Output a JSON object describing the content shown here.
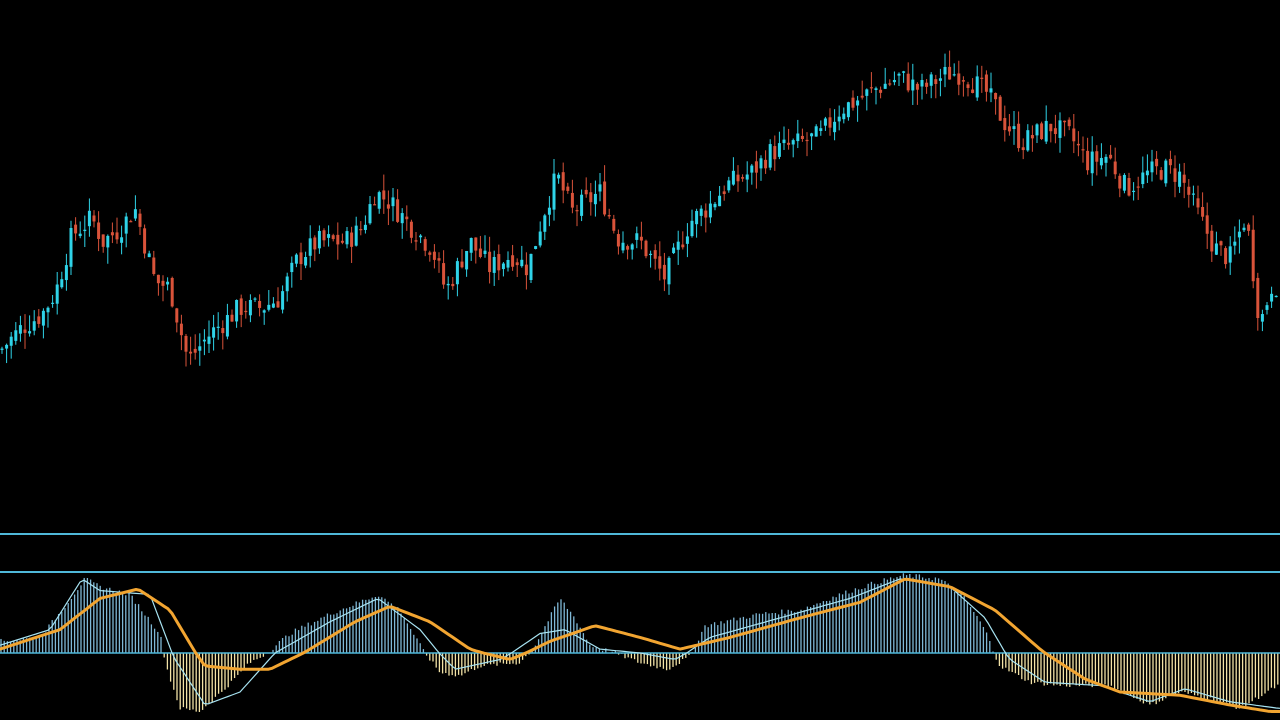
{
  "colors": {
    "background": "#000000",
    "bull": "#2fd3e8",
    "bear": "#d9533a",
    "panel_line": "#4fb8d9",
    "signal_line": "#f2a531",
    "macd_line": "#a7e3f2",
    "hist_pos": "#7fb8d6",
    "hist_neg": "#f3e3a6"
  },
  "chart_data": [
    {
      "type": "candlestick",
      "title": "",
      "xlabel": "",
      "ylabel": "",
      "grid": false,
      "ylim": [
        0,
        100
      ],
      "keypoints": [
        [
          0,
          15
        ],
        [
          22,
          22
        ],
        [
          42,
          26
        ],
        [
          56,
          33
        ],
        [
          72,
          50
        ],
        [
          92,
          55
        ],
        [
          103,
          48
        ],
        [
          120,
          52
        ],
        [
          135,
          58
        ],
        [
          155,
          36
        ],
        [
          170,
          34
        ],
        [
          188,
          12
        ],
        [
          210,
          20
        ],
        [
          240,
          28
        ],
        [
          262,
          28
        ],
        [
          280,
          31
        ],
        [
          298,
          43
        ],
        [
          318,
          48
        ],
        [
          345,
          48
        ],
        [
          362,
          52
        ],
        [
          375,
          63
        ],
        [
          390,
          60
        ],
        [
          410,
          53
        ],
        [
          432,
          46
        ],
        [
          446,
          33
        ],
        [
          470,
          48
        ],
        [
          490,
          40
        ],
        [
          512,
          44
        ],
        [
          528,
          40
        ],
        [
          544,
          57
        ],
        [
          557,
          68
        ],
        [
          572,
          57
        ],
        [
          600,
          63
        ],
        [
          618,
          49
        ],
        [
          640,
          48
        ],
        [
          665,
          37
        ],
        [
          690,
          54
        ],
        [
          710,
          59
        ],
        [
          726,
          65
        ],
        [
          752,
          69
        ],
        [
          770,
          75
        ],
        [
          800,
          78
        ],
        [
          820,
          80
        ],
        [
          840,
          88
        ],
        [
          858,
          91
        ],
        [
          874,
          94
        ],
        [
          900,
          98
        ],
        [
          920,
          94
        ],
        [
          948,
          99
        ],
        [
          962,
          99
        ],
        [
          987,
          93
        ],
        [
          1005,
          84
        ],
        [
          1022,
          78
        ],
        [
          1050,
          83
        ],
        [
          1070,
          80
        ],
        [
          1088,
          72
        ],
        [
          1108,
          74
        ],
        [
          1126,
          64
        ],
        [
          1150,
          69
        ],
        [
          1165,
          70
        ],
        [
          1180,
          68
        ],
        [
          1200,
          55
        ],
        [
          1215,
          46
        ],
        [
          1230,
          43
        ],
        [
          1246,
          56
        ],
        [
          1260,
          23
        ],
        [
          1272,
          35
        ]
      ]
    },
    {
      "type": "macd",
      "title": "",
      "xlabel": "",
      "ylabel": "",
      "grid": false,
      "ylim": [
        -1,
        1
      ],
      "zero_line": 0,
      "reference_lines": [
        1,
        1.5
      ],
      "histogram_keypoints": [
        [
          0,
          0.15
        ],
        [
          40,
          0.2
        ],
        [
          62,
          0.55
        ],
        [
          85,
          0.95
        ],
        [
          100,
          0.85
        ],
        [
          130,
          0.75
        ],
        [
          160,
          0.25
        ],
        [
          168,
          -0.3
        ],
        [
          180,
          -0.85
        ],
        [
          200,
          -0.9
        ],
        [
          225,
          -0.55
        ],
        [
          250,
          -0.15
        ],
        [
          262,
          -0.05
        ],
        [
          290,
          0.25
        ],
        [
          330,
          0.5
        ],
        [
          378,
          0.75
        ],
        [
          400,
          0.55
        ],
        [
          420,
          0.1
        ],
        [
          440,
          -0.3
        ],
        [
          460,
          -0.35
        ],
        [
          480,
          -0.2
        ],
        [
          520,
          -0.15
        ],
        [
          535,
          0.1
        ],
        [
          560,
          0.7
        ],
        [
          575,
          0.45
        ],
        [
          590,
          0.1
        ],
        [
          615,
          0.0
        ],
        [
          640,
          -0.15
        ],
        [
          668,
          -0.25
        ],
        [
          690,
          -0.05
        ],
        [
          705,
          0.35
        ],
        [
          760,
          0.5
        ],
        [
          800,
          0.55
        ],
        [
          840,
          0.75
        ],
        [
          875,
          0.9
        ],
        [
          905,
          1.0
        ],
        [
          940,
          0.95
        ],
        [
          965,
          0.7
        ],
        [
          985,
          0.3
        ],
        [
          1000,
          -0.2
        ],
        [
          1030,
          -0.45
        ],
        [
          1060,
          -0.5
        ],
        [
          1110,
          -0.5
        ],
        [
          1150,
          -0.8
        ],
        [
          1180,
          -0.6
        ],
        [
          1210,
          -0.7
        ],
        [
          1240,
          -0.85
        ],
        [
          1278,
          -0.5
        ]
      ],
      "macd_keypoints": [
        [
          0,
          0.1
        ],
        [
          50,
          0.3
        ],
        [
          82,
          0.95
        ],
        [
          100,
          0.8
        ],
        [
          150,
          0.75
        ],
        [
          175,
          -0.1
        ],
        [
          205,
          -0.8
        ],
        [
          240,
          -0.6
        ],
        [
          275,
          0.0
        ],
        [
          330,
          0.4
        ],
        [
          378,
          0.7
        ],
        [
          420,
          0.3
        ],
        [
          455,
          -0.25
        ],
        [
          500,
          -0.1
        ],
        [
          540,
          0.25
        ],
        [
          565,
          0.3
        ],
        [
          600,
          0.05
        ],
        [
          640,
          0.0
        ],
        [
          675,
          -0.1
        ],
        [
          710,
          0.2
        ],
        [
          780,
          0.45
        ],
        [
          850,
          0.7
        ],
        [
          900,
          0.95
        ],
        [
          950,
          0.85
        ],
        [
          985,
          0.45
        ],
        [
          1010,
          -0.1
        ],
        [
          1045,
          -0.45
        ],
        [
          1100,
          -0.5
        ],
        [
          1150,
          -0.75
        ],
        [
          1185,
          -0.55
        ],
        [
          1230,
          -0.75
        ],
        [
          1278,
          -0.85
        ]
      ],
      "signal_keypoints": [
        [
          0,
          0.05
        ],
        [
          60,
          0.3
        ],
        [
          100,
          0.7
        ],
        [
          138,
          0.82
        ],
        [
          170,
          0.55
        ],
        [
          205,
          -0.2
        ],
        [
          240,
          -0.25
        ],
        [
          270,
          -0.25
        ],
        [
          310,
          0.05
        ],
        [
          355,
          0.4
        ],
        [
          390,
          0.6
        ],
        [
          430,
          0.4
        ],
        [
          470,
          0.05
        ],
        [
          510,
          -0.1
        ],
        [
          550,
          0.15
        ],
        [
          595,
          0.35
        ],
        [
          640,
          0.2
        ],
        [
          680,
          0.05
        ],
        [
          730,
          0.2
        ],
        [
          800,
          0.45
        ],
        [
          860,
          0.65
        ],
        [
          905,
          0.95
        ],
        [
          950,
          0.85
        ],
        [
          995,
          0.55
        ],
        [
          1040,
          0.05
        ],
        [
          1085,
          -0.4
        ],
        [
          1120,
          -0.6
        ],
        [
          1180,
          -0.65
        ],
        [
          1230,
          -0.8
        ],
        [
          1270,
          -0.9
        ]
      ]
    }
  ]
}
